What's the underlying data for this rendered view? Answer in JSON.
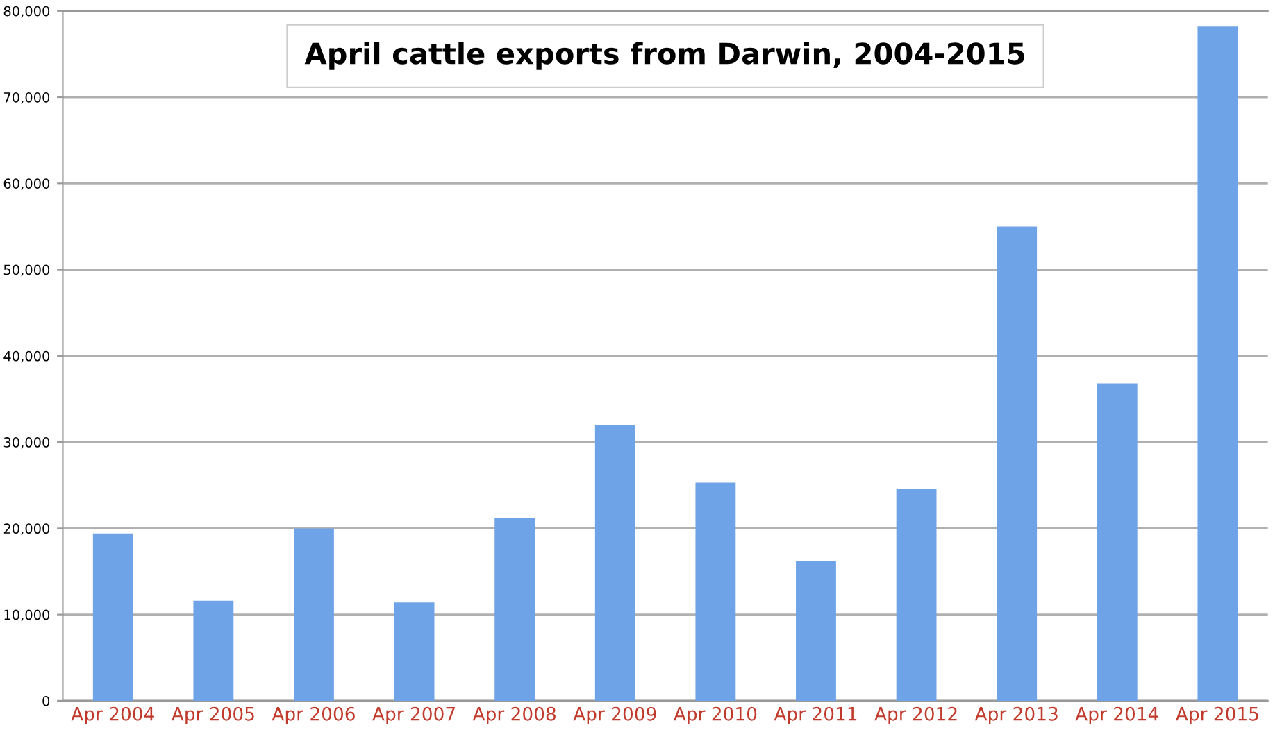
{
  "chart_data": {
    "type": "bar",
    "title": "April cattle exports from Darwin, 2004-2015",
    "categories": [
      "Apr 2004",
      "Apr 2005",
      "Apr 2006",
      "Apr 2007",
      "Apr 2008",
      "Apr 2009",
      "Apr 2010",
      "Apr 2011",
      "Apr 2012",
      "Apr 2013",
      "Apr 2014",
      "Apr 2015"
    ],
    "values": [
      19400,
      11600,
      20000,
      11400,
      21200,
      32000,
      25300,
      16200,
      24600,
      55000,
      36800,
      78200
    ],
    "color": "#6fa3e8",
    "ylim": [
      0,
      80000
    ],
    "yticks": [
      {
        "value": 0,
        "label": "0"
      },
      {
        "value": 10000,
        "label": "10,000"
      },
      {
        "value": 20000,
        "label": "20,000"
      },
      {
        "value": 30000,
        "label": "30,000"
      },
      {
        "value": 40000,
        "label": "40,000"
      },
      {
        "value": 50000,
        "label": "50,000"
      },
      {
        "value": 60000,
        "label": "60,000"
      },
      {
        "value": 70000,
        "label": "70,000"
      },
      {
        "value": 80000,
        "label": "80,000"
      }
    ],
    "grid": "y"
  }
}
